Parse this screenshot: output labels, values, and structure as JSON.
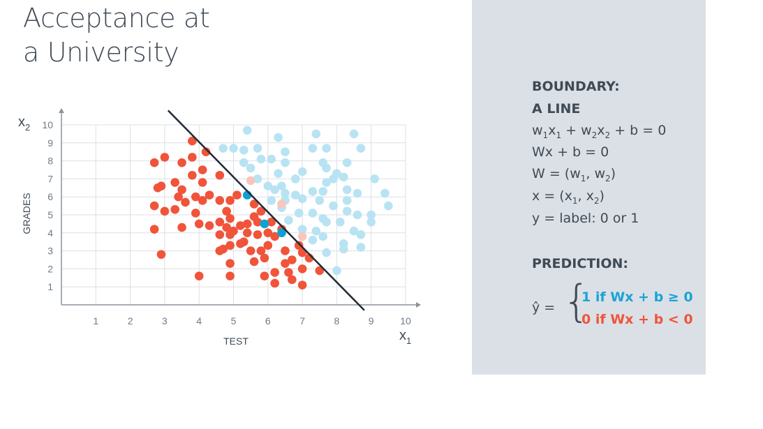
{
  "title": {
    "line1": "Acceptance at",
    "line2": "a University"
  },
  "chart_data": {
    "type": "scatter",
    "xlabel": "TEST",
    "ylabel": "GRADES",
    "x_axis_symbol": {
      "main": "x",
      "sub": "1"
    },
    "y_axis_symbol": {
      "main": "x",
      "sub": "2"
    },
    "xlim": [
      0,
      10
    ],
    "ylim": [
      0,
      10
    ],
    "x_ticks": [
      "1",
      "2",
      "3",
      "4",
      "5",
      "6",
      "7",
      "8",
      "9",
      "10"
    ],
    "y_ticks": [
      "1",
      "2",
      "3",
      "4",
      "5",
      "6",
      "7",
      "8",
      "9",
      "10"
    ],
    "grid": true,
    "boundary_line": {
      "x1": 3.1,
      "y1": 10.8,
      "x2": 8.8,
      "y2": -0.3
    },
    "colors": {
      "rejected": "#f0543a",
      "accepted": "#b8e3f3",
      "highlight": "#0da2d3",
      "faded_red": "#f7c6bd",
      "line": "#1f2a36",
      "axis": "#8a939c",
      "grid": "#dcdfe3"
    },
    "series": [
      {
        "color": "#f0543a",
        "points": [
          [
            3.8,
            9.1
          ],
          [
            4.2,
            8.5
          ],
          [
            2.7,
            7.9
          ],
          [
            3.0,
            8.2
          ],
          [
            3.5,
            7.9
          ],
          [
            3.8,
            8.2
          ],
          [
            4.1,
            7.5
          ],
          [
            3.8,
            7.2
          ],
          [
            4.6,
            7.2
          ],
          [
            3.3,
            6.8
          ],
          [
            2.8,
            6.5
          ],
          [
            2.9,
            6.6
          ],
          [
            3.5,
            6.4
          ],
          [
            4.1,
            6.8
          ],
          [
            3.9,
            6.0
          ],
          [
            4.3,
            6.1
          ],
          [
            3.4,
            6.0
          ],
          [
            3.6,
            5.7
          ],
          [
            4.1,
            5.8
          ],
          [
            4.6,
            5.8
          ],
          [
            4.9,
            5.8
          ],
          [
            5.1,
            6.1
          ],
          [
            5.6,
            5.6
          ],
          [
            5.8,
            5.2
          ],
          [
            2.7,
            5.5
          ],
          [
            3.0,
            5.2
          ],
          [
            3.3,
            5.3
          ],
          [
            3.9,
            5.1
          ],
          [
            4.8,
            5.2
          ],
          [
            5.6,
            4.9
          ],
          [
            6.1,
            4.6
          ],
          [
            4.6,
            4.6
          ],
          [
            4.9,
            4.8
          ],
          [
            5.2,
            4.4
          ],
          [
            5.4,
            4.5
          ],
          [
            5.7,
            4.6
          ],
          [
            2.7,
            4.2
          ],
          [
            3.5,
            4.3
          ],
          [
            4.0,
            4.5
          ],
          [
            4.3,
            4.4
          ],
          [
            4.8,
            4.3
          ],
          [
            5.0,
            4.1
          ],
          [
            5.4,
            4.0
          ],
          [
            6.0,
            4.0
          ],
          [
            4.6,
            3.9
          ],
          [
            4.9,
            3.9
          ],
          [
            5.3,
            3.5
          ],
          [
            5.7,
            3.9
          ],
          [
            6.2,
            3.8
          ],
          [
            6.4,
            4.2
          ],
          [
            4.9,
            3.3
          ],
          [
            5.2,
            3.4
          ],
          [
            5.5,
            3.0
          ],
          [
            5.8,
            3.0
          ],
          [
            6.0,
            3.3
          ],
          [
            6.5,
            3.0
          ],
          [
            6.9,
            3.3
          ],
          [
            4.6,
            3.0
          ],
          [
            4.7,
            3.1
          ],
          [
            7.0,
            2.9
          ],
          [
            2.9,
            2.8
          ],
          [
            5.6,
            2.4
          ],
          [
            5.9,
            2.6
          ],
          [
            6.5,
            2.3
          ],
          [
            6.7,
            2.5
          ],
          [
            7.2,
            2.6
          ],
          [
            4.9,
            2.3
          ],
          [
            7.0,
            2.0
          ],
          [
            7.5,
            1.9
          ],
          [
            6.2,
            1.8
          ],
          [
            6.6,
            1.8
          ],
          [
            5.9,
            1.6
          ],
          [
            4.0,
            1.6
          ],
          [
            4.9,
            1.6
          ],
          [
            6.7,
            1.4
          ],
          [
            6.2,
            1.2
          ],
          [
            7.0,
            1.1
          ]
        ]
      },
      {
        "color": "#b8e3f3",
        "points": [
          [
            5.4,
            9.7
          ],
          [
            6.3,
            9.3
          ],
          [
            7.4,
            9.5
          ],
          [
            8.5,
            9.5
          ],
          [
            4.7,
            8.7
          ],
          [
            5.0,
            8.7
          ],
          [
            5.3,
            8.6
          ],
          [
            5.7,
            8.7
          ],
          [
            6.1,
            8.1
          ],
          [
            6.5,
            8.5
          ],
          [
            7.3,
            8.7
          ],
          [
            7.7,
            8.7
          ],
          [
            8.7,
            8.7
          ],
          [
            5.3,
            7.9
          ],
          [
            5.8,
            8.1
          ],
          [
            6.5,
            7.9
          ],
          [
            7.6,
            7.9
          ],
          [
            8.3,
            7.9
          ],
          [
            5.5,
            7.6
          ],
          [
            6.3,
            7.3
          ],
          [
            6.8,
            7.0
          ],
          [
            7.0,
            7.4
          ],
          [
            7.7,
            7.6
          ],
          [
            8.0,
            7.3
          ],
          [
            5.7,
            7.0
          ],
          [
            6.0,
            6.6
          ],
          [
            6.4,
            6.6
          ],
          [
            7.7,
            6.8
          ],
          [
            7.9,
            7.0
          ],
          [
            8.2,
            7.1
          ],
          [
            9.1,
            7.0
          ],
          [
            6.2,
            6.4
          ],
          [
            6.5,
            6.2
          ],
          [
            6.8,
            6.1
          ],
          [
            7.3,
            6.3
          ],
          [
            7.6,
            6.3
          ],
          [
            8.3,
            6.4
          ],
          [
            8.6,
            6.2
          ],
          [
            9.4,
            6.2
          ],
          [
            6.1,
            5.8
          ],
          [
            6.5,
            5.8
          ],
          [
            7.0,
            5.9
          ],
          [
            7.5,
            5.8
          ],
          [
            7.9,
            5.5
          ],
          [
            8.3,
            5.8
          ],
          [
            9.5,
            5.5
          ],
          [
            6.4,
            5.4
          ],
          [
            6.9,
            5.1
          ],
          [
            7.3,
            5.1
          ],
          [
            7.6,
            4.8
          ],
          [
            8.3,
            5.2
          ],
          [
            8.6,
            5.0
          ],
          [
            9.0,
            5.0
          ],
          [
            9.0,
            4.6
          ],
          [
            6.6,
            4.7
          ],
          [
            7.7,
            4.6
          ],
          [
            7.4,
            4.1
          ],
          [
            8.1,
            4.6
          ],
          [
            8.5,
            4.1
          ],
          [
            8.7,
            3.9
          ],
          [
            7.0,
            4.2
          ],
          [
            7.3,
            3.6
          ],
          [
            7.6,
            3.8
          ],
          [
            8.2,
            3.4
          ],
          [
            8.7,
            3.2
          ],
          [
            7.7,
            2.9
          ],
          [
            8.2,
            3.1
          ],
          [
            8.0,
            1.9
          ]
        ]
      },
      {
        "color": "#f7c6bd",
        "points": [
          [
            5.5,
            6.9
          ],
          [
            6.4,
            5.6
          ],
          [
            7.0,
            3.8
          ]
        ]
      },
      {
        "color": "#0da2d3",
        "points": [
          [
            5.4,
            6.1
          ],
          [
            5.9,
            4.5
          ],
          [
            6.4,
            4.0
          ]
        ]
      }
    ]
  },
  "panel": {
    "boundary_label": "BOUNDARY:",
    "line_label": "A LINE",
    "eq1": {
      "w": "w",
      "s1": "1",
      "x": "x",
      "s2": "1",
      "plus_w": " + w",
      "s3": "2",
      "x2": "x",
      "s4": "2",
      "tail": " + b = 0"
    },
    "eq2": "Wx + b = 0",
    "eq3": {
      "head": "W = (w",
      "s1": "1",
      "mid": ", w",
      "s2": "2",
      "tail": ")"
    },
    "eq4": {
      "head": "x = (x",
      "s1": "1",
      "mid": ", x",
      "s2": "2",
      "tail": ")"
    },
    "eq5": "y = label: 0 or 1",
    "prediction_label": "PREDICTION:",
    "yhat": "ŷ =",
    "brace": "{",
    "case1": "1 if Wx + b ≥ 0",
    "case2": "0 if Wx + b < 0",
    "case1_color": "#1aa3d6",
    "case2_color": "#f0543a"
  }
}
